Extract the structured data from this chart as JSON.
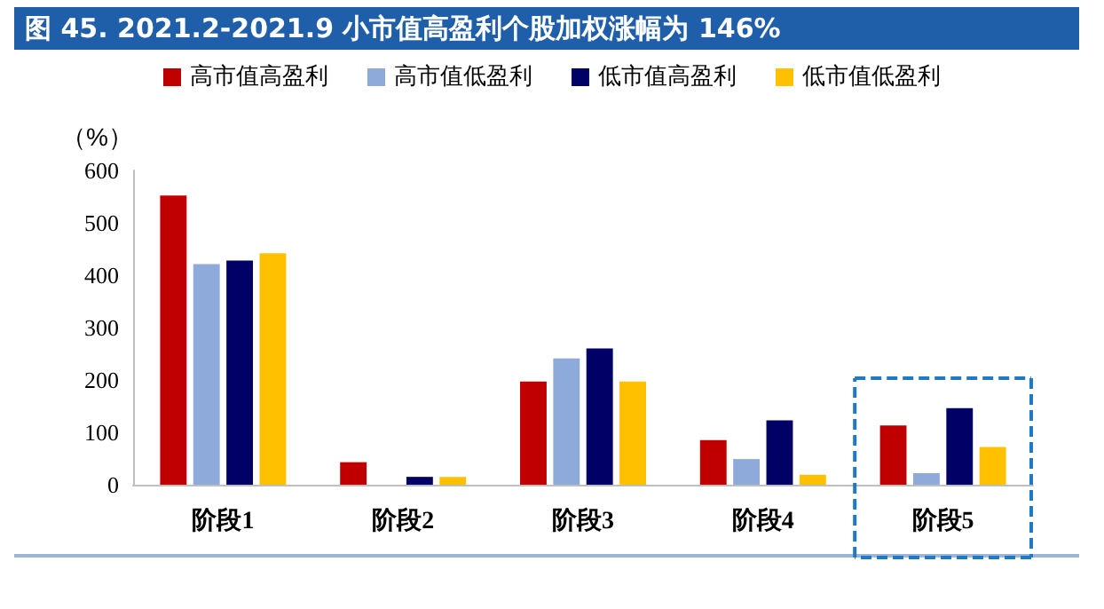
{
  "chart_data": {
    "type": "bar",
    "title": "图 45. 2021.2-2021.9 小市值高盈利个股加权涨幅为 146%",
    "ylabel": "（%）",
    "categories": [
      "阶段1",
      "阶段2",
      "阶段3",
      "阶段4",
      "阶段5"
    ],
    "series": [
      {
        "name": "高市值高盈利",
        "color": "#c00000",
        "values": [
          552,
          43,
          197,
          85,
          113
        ]
      },
      {
        "name": "高市值低盈利",
        "color": "#8eaadb",
        "values": [
          421,
          null,
          241,
          49,
          22
        ]
      },
      {
        "name": "低市值高盈利",
        "color": "#000066",
        "values": [
          428,
          15,
          260,
          123,
          146
        ]
      },
      {
        "name": "低市值低盈利",
        "color": "#ffc000",
        "values": [
          442,
          15,
          197,
          19,
          72
        ]
      }
    ],
    "ylim": [
      0,
      600
    ],
    "yticks": [
      0,
      100,
      200,
      300,
      400,
      500,
      600
    ],
    "grid": false,
    "legend": "top"
  }
}
